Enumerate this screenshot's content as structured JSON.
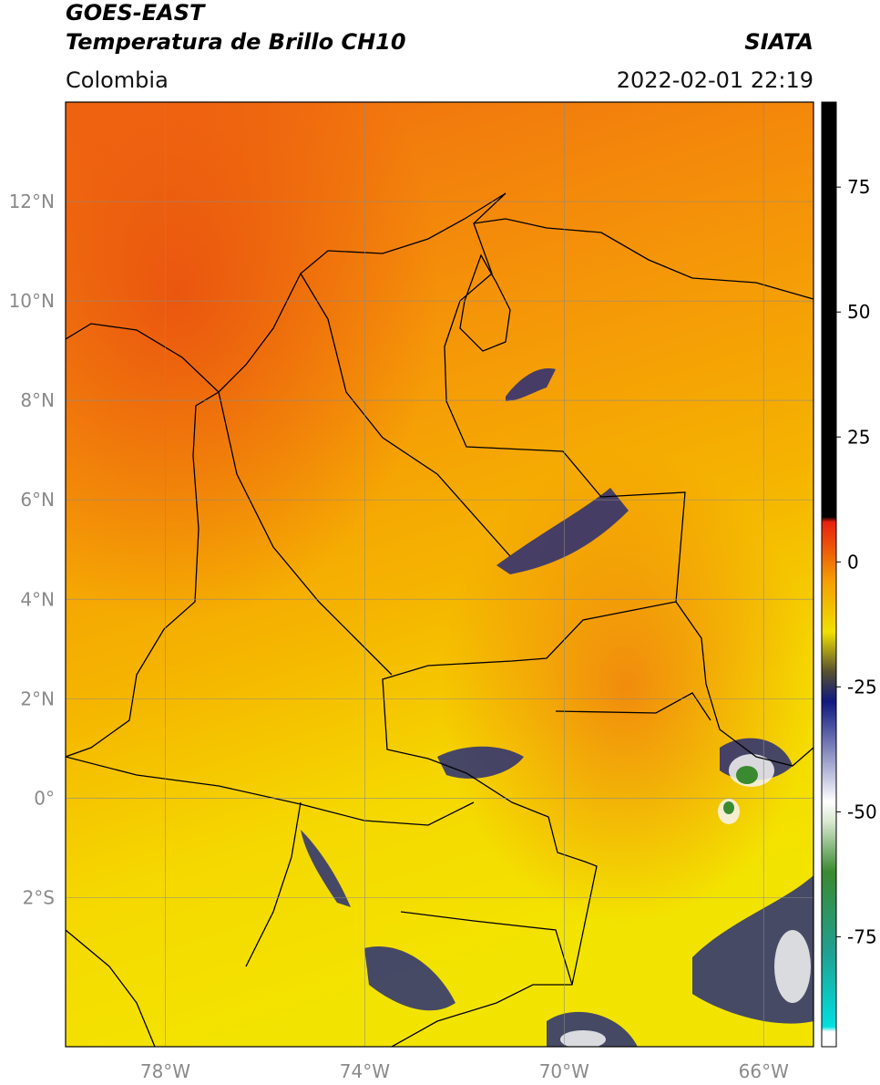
{
  "header": {
    "title_line1": "GOES-EAST",
    "title_line2": "Temperatura de Brillo CH10",
    "source": "SIATA",
    "region": "Colombia",
    "timestamp": "2022-02-01 22:19"
  },
  "map": {
    "xlim": [
      -80,
      -65
    ],
    "ylim": [
      -5,
      14
    ],
    "xticks": [
      {
        "value": -78,
        "label": "78°W"
      },
      {
        "value": -74,
        "label": "74°W"
      },
      {
        "value": -70,
        "label": "70°W"
      },
      {
        "value": -66,
        "label": "66°W"
      }
    ],
    "yticks": [
      {
        "value": 12,
        "label": "12°N"
      },
      {
        "value": 10,
        "label": "10°N"
      },
      {
        "value": 8,
        "label": "8°N"
      },
      {
        "value": 6,
        "label": "6°N"
      },
      {
        "value": 4,
        "label": "4°N"
      },
      {
        "value": 2,
        "label": "2°N"
      },
      {
        "value": 0,
        "label": "0°"
      },
      {
        "value": -2,
        "label": "2°S"
      }
    ],
    "grid": true
  },
  "colorbar": {
    "lim": [
      -97,
      92
    ],
    "ticks": [
      75,
      50,
      25,
      0,
      -25,
      -50,
      -75
    ],
    "stops": [
      {
        "value": -97,
        "color": "#ffffff"
      },
      {
        "value": -94,
        "color": "#ffffff"
      },
      {
        "value": -93,
        "color": "#00e0e0"
      },
      {
        "value": -78,
        "color": "#20a090"
      },
      {
        "value": -62,
        "color": "#3a8a30"
      },
      {
        "value": -52,
        "color": "#d8e8d0"
      },
      {
        "value": -48,
        "color": "#ffffff"
      },
      {
        "value": -28,
        "color": "#101880"
      },
      {
        "value": -22,
        "color": "#555030"
      },
      {
        "value": -14,
        "color": "#f0e000"
      },
      {
        "value": -4,
        "color": "#f5a000"
      },
      {
        "value": 8,
        "color": "#e82010"
      },
      {
        "value": 9,
        "color": "#000000"
      },
      {
        "value": 92,
        "color": "#000000"
      }
    ]
  }
}
